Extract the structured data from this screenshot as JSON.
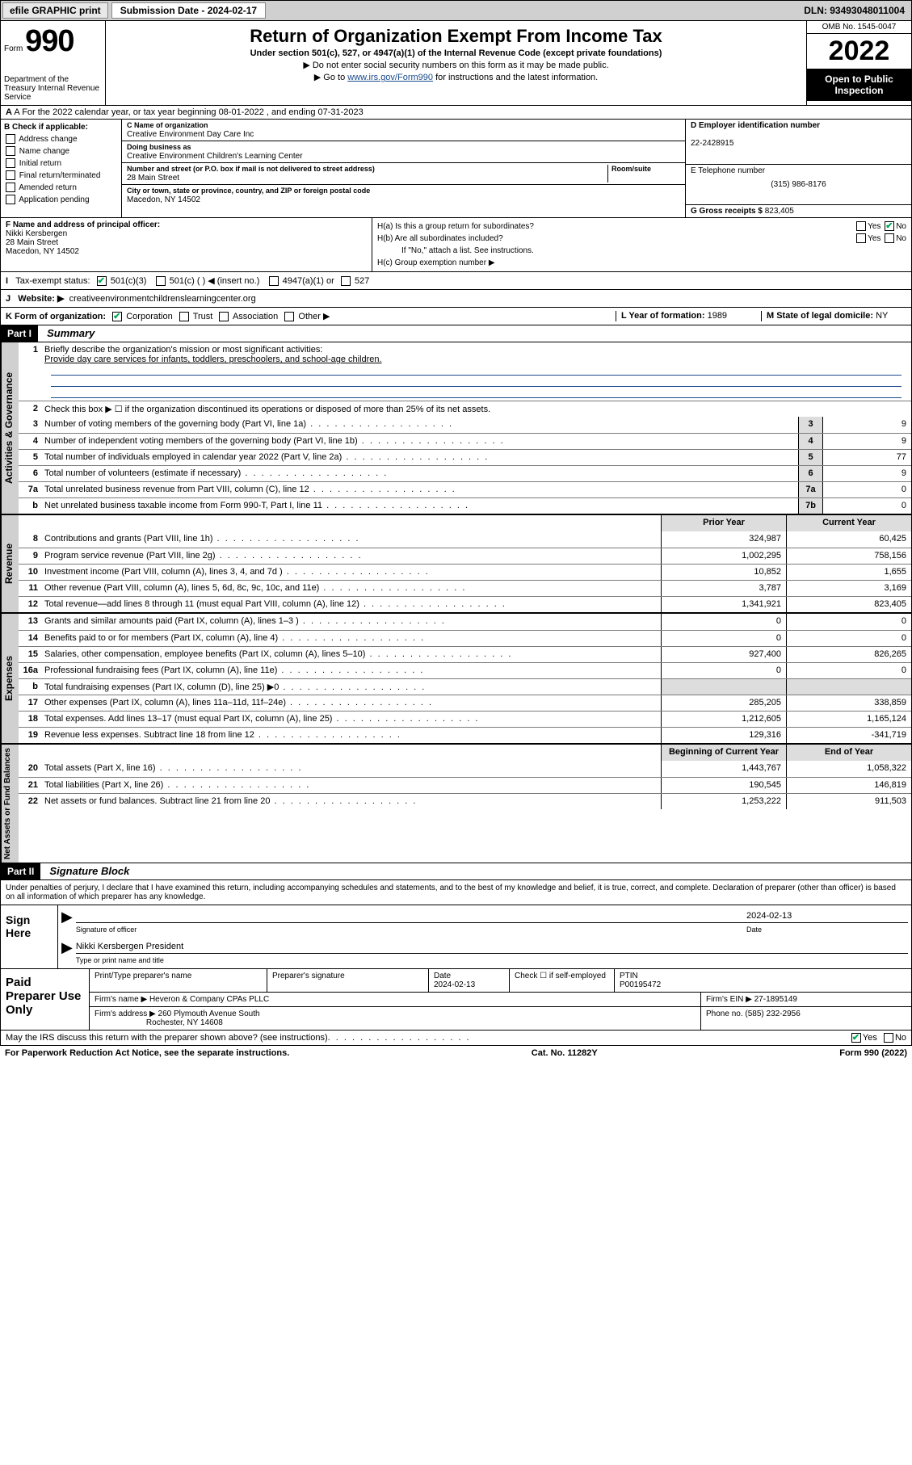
{
  "topbar": {
    "efile": "efile GRAPHIC print",
    "sub_label": "Submission Date - 2024-02-17",
    "dln": "DLN: 93493048011004"
  },
  "header": {
    "form_label": "Form",
    "form_num": "990",
    "dept": "Department of the Treasury Internal Revenue Service",
    "title": "Return of Organization Exempt From Income Tax",
    "sub": "Under section 501(c), 527, or 4947(a)(1) of the Internal Revenue Code (except private foundations)",
    "note1": "▶ Do not enter social security numbers on this form as it may be made public.",
    "note2_pre": "▶ Go to ",
    "note2_link": "www.irs.gov/Form990",
    "note2_post": " for instructions and the latest information.",
    "omb": "OMB No. 1545-0047",
    "year": "2022",
    "inspect": "Open to Public Inspection"
  },
  "row_a": "A For the 2022 calendar year, or tax year beginning 08-01-2022   , and ending 07-31-2023",
  "col_b": {
    "title": "B Check if applicable:",
    "items": [
      "Address change",
      "Name change",
      "Initial return",
      "Final return/terminated",
      "Amended return",
      "Application pending"
    ]
  },
  "col_c": {
    "name_lbl": "C Name of organization",
    "name": "Creative Environment Day Care Inc",
    "dba_lbl": "Doing business as",
    "dba": "Creative Environment Children's Learning Center",
    "addr_lbl": "Number and street (or P.O. box if mail is not delivered to street address)",
    "room_lbl": "Room/suite",
    "addr": "28 Main Street",
    "city_lbl": "City or town, state or province, country, and ZIP or foreign postal code",
    "city": "Macedon, NY  14502"
  },
  "col_d": {
    "ein_lbl": "D Employer identification number",
    "ein": "22-2428915",
    "phone_lbl": "E Telephone number",
    "phone": "(315) 986-8176",
    "gross_lbl": "G Gross receipts $",
    "gross": "823,405"
  },
  "officer": {
    "lbl": "F Name and address of principal officer:",
    "name": "Nikki Kersbergen",
    "addr1": "28 Main Street",
    "addr2": "Macedon, NY  14502"
  },
  "group": {
    "ha": "H(a)  Is this a group return for subordinates?",
    "hb": "H(b)  Are all subordinates included?",
    "hb_note": "If \"No,\" attach a list. See instructions.",
    "hc": "H(c)  Group exemption number ▶"
  },
  "row_i": {
    "lbl": "Tax-exempt status:",
    "o1": "501(c)(3)",
    "o2": "501(c) (  ) ◀ (insert no.)",
    "o3": "4947(a)(1) or",
    "o4": "527"
  },
  "row_j": {
    "lbl": "Website: ▶",
    "val": "creativeenvironmentchildrenslearningcenter.org"
  },
  "row_k": {
    "lbl": "K Form of organization:",
    "o1": "Corporation",
    "o2": "Trust",
    "o3": "Association",
    "o4": "Other ▶",
    "year_lbl": "L Year of formation:",
    "year": "1989",
    "state_lbl": "M State of legal domicile:",
    "state": "NY"
  },
  "part1": {
    "header": "Part I",
    "title": "Summary",
    "sections": {
      "gov": "Activities & Governance",
      "rev": "Revenue",
      "exp": "Expenses",
      "net": "Net Assets or Fund Balances"
    },
    "mission_lbl": "Briefly describe the organization's mission or most significant activities:",
    "mission": "Provide day care services for infants, toddlers, preschoolers, and school-age children.",
    "line2": "Check this box ▶ ☐  if the organization discontinued its operations or disposed of more than 25% of its net assets.",
    "lines_gov": [
      {
        "n": "3",
        "d": "Number of voting members of the governing body (Part VI, line 1a)",
        "b": "3",
        "v": "9"
      },
      {
        "n": "4",
        "d": "Number of independent voting members of the governing body (Part VI, line 1b)",
        "b": "4",
        "v": "9"
      },
      {
        "n": "5",
        "d": "Total number of individuals employed in calendar year 2022 (Part V, line 2a)",
        "b": "5",
        "v": "77"
      },
      {
        "n": "6",
        "d": "Total number of volunteers (estimate if necessary)",
        "b": "6",
        "v": "9"
      },
      {
        "n": "7a",
        "d": "Total unrelated business revenue from Part VIII, column (C), line 12",
        "b": "7a",
        "v": "0"
      },
      {
        "n": "b",
        "d": "Net unrelated business taxable income from Form 990-T, Part I, line 11",
        "b": "7b",
        "v": "0"
      }
    ],
    "hdr_prior": "Prior Year",
    "hdr_curr": "Current Year",
    "lines_rev": [
      {
        "n": "8",
        "d": "Contributions and grants (Part VIII, line 1h)",
        "p": "324,987",
        "c": "60,425"
      },
      {
        "n": "9",
        "d": "Program service revenue (Part VIII, line 2g)",
        "p": "1,002,295",
        "c": "758,156"
      },
      {
        "n": "10",
        "d": "Investment income (Part VIII, column (A), lines 3, 4, and 7d )",
        "p": "10,852",
        "c": "1,655"
      },
      {
        "n": "11",
        "d": "Other revenue (Part VIII, column (A), lines 5, 6d, 8c, 9c, 10c, and 11e)",
        "p": "3,787",
        "c": "3,169"
      },
      {
        "n": "12",
        "d": "Total revenue—add lines 8 through 11 (must equal Part VIII, column (A), line 12)",
        "p": "1,341,921",
        "c": "823,405"
      }
    ],
    "lines_exp": [
      {
        "n": "13",
        "d": "Grants and similar amounts paid (Part IX, column (A), lines 1–3 )",
        "p": "0",
        "c": "0"
      },
      {
        "n": "14",
        "d": "Benefits paid to or for members (Part IX, column (A), line 4)",
        "p": "0",
        "c": "0"
      },
      {
        "n": "15",
        "d": "Salaries, other compensation, employee benefits (Part IX, column (A), lines 5–10)",
        "p": "927,400",
        "c": "826,265"
      },
      {
        "n": "16a",
        "d": "Professional fundraising fees (Part IX, column (A), line 11e)",
        "p": "0",
        "c": "0"
      },
      {
        "n": "b",
        "d": "Total fundraising expenses (Part IX, column (D), line 25) ▶0",
        "p": "",
        "c": "",
        "grey": true
      },
      {
        "n": "17",
        "d": "Other expenses (Part IX, column (A), lines 11a–11d, 11f–24e)",
        "p": "285,205",
        "c": "338,859"
      },
      {
        "n": "18",
        "d": "Total expenses. Add lines 13–17 (must equal Part IX, column (A), line 25)",
        "p": "1,212,605",
        "c": "1,165,124"
      },
      {
        "n": "19",
        "d": "Revenue less expenses. Subtract line 18 from line 12",
        "p": "129,316",
        "c": "-341,719"
      }
    ],
    "hdr_beg": "Beginning of Current Year",
    "hdr_end": "End of Year",
    "lines_net": [
      {
        "n": "20",
        "d": "Total assets (Part X, line 16)",
        "p": "1,443,767",
        "c": "1,058,322"
      },
      {
        "n": "21",
        "d": "Total liabilities (Part X, line 26)",
        "p": "190,545",
        "c": "146,819"
      },
      {
        "n": "22",
        "d": "Net assets or fund balances. Subtract line 21 from line 20",
        "p": "1,253,222",
        "c": "911,503"
      }
    ]
  },
  "part2": {
    "header": "Part II",
    "title": "Signature Block",
    "decl": "Under penalties of perjury, I declare that I have examined this return, including accompanying schedules and statements, and to the best of my knowledge and belief, it is true, correct, and complete. Declaration of preparer (other than officer) is based on all information of which preparer has any knowledge.",
    "sign_here": "Sign Here",
    "sig_officer": "Signature of officer",
    "sig_date": "2024-02-13",
    "date_lbl": "Date",
    "sig_name": "Nikki Kersbergen  President",
    "sig_name_lbl": "Type or print name and title",
    "paid": "Paid Preparer Use Only",
    "prep_name_lbl": "Print/Type preparer's name",
    "prep_sig_lbl": "Preparer's signature",
    "prep_date_lbl": "Date",
    "prep_date": "2024-02-13",
    "prep_check_lbl": "Check ☐ if self-employed",
    "ptin_lbl": "PTIN",
    "ptin": "P00195472",
    "firm_name_lbl": "Firm's name    ▶",
    "firm_name": "Heveron & Company CPAs PLLC",
    "firm_ein_lbl": "Firm's EIN ▶",
    "firm_ein": "27-1895149",
    "firm_addr_lbl": "Firm's address ▶",
    "firm_addr": "260 Plymouth Avenue South",
    "firm_city": "Rochester, NY  14608",
    "firm_phone_lbl": "Phone no.",
    "firm_phone": "(585) 232-2956"
  },
  "footer": {
    "discuss": "May the IRS discuss this return with the preparer shown above? (see instructions)",
    "paperwork": "For Paperwork Reduction Act Notice, see the separate instructions.",
    "cat": "Cat. No. 11282Y",
    "form": "Form 990 (2022)"
  }
}
